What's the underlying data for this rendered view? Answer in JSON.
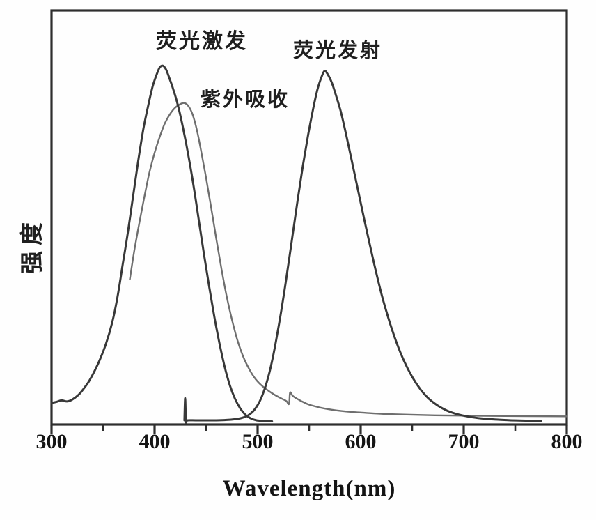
{
  "chart_data": {
    "type": "line",
    "title": "",
    "xlabel": "Wavelength(nm)",
    "ylabel": "强度",
    "xlim": [
      300,
      800
    ],
    "ylim": [
      0,
      1.155
    ],
    "x_ticks": [
      300,
      400,
      500,
      600,
      700,
      800
    ],
    "x_minor_ticks": [
      350,
      450,
      550,
      650,
      750
    ],
    "grid": false,
    "legend": "inline text annotations above each peak",
    "frame": "full box, no y-axis ticks",
    "frame_color": "#2e2e2e",
    "background_color": "#fefefe",
    "series": [
      {
        "name": "紫外吸收",
        "role": "uv-absorption",
        "color": "#6e6e6e",
        "stroke_width": 2.4,
        "peak_nm": 429,
        "points": [
          [
            376,
            0.4
          ],
          [
            380,
            0.475
          ],
          [
            385,
            0.555
          ],
          [
            390,
            0.63
          ],
          [
            395,
            0.7
          ],
          [
            400,
            0.755
          ],
          [
            405,
            0.8
          ],
          [
            410,
            0.838
          ],
          [
            415,
            0.864
          ],
          [
            420,
            0.882
          ],
          [
            425,
            0.892
          ],
          [
            429,
            0.895
          ],
          [
            433,
            0.886
          ],
          [
            437,
            0.862
          ],
          [
            441,
            0.82
          ],
          [
            445,
            0.763
          ],
          [
            450,
            0.685
          ],
          [
            455,
            0.6
          ],
          [
            460,
            0.512
          ],
          [
            465,
            0.428
          ],
          [
            470,
            0.352
          ],
          [
            475,
            0.288
          ],
          [
            480,
            0.233
          ],
          [
            486,
            0.183
          ],
          [
            492,
            0.147
          ],
          [
            498,
            0.12
          ],
          [
            505,
            0.099
          ],
          [
            512,
            0.084
          ],
          [
            518,
            0.073
          ],
          [
            524,
            0.064
          ],
          [
            528,
            0.058
          ],
          [
            530.5,
            0.05
          ],
          [
            531.5,
            0.082
          ],
          [
            534,
            0.073
          ],
          [
            538,
            0.065
          ],
          [
            543,
            0.057
          ],
          [
            549,
            0.049
          ],
          [
            556,
            0.043
          ],
          [
            565,
            0.037
          ],
          [
            576,
            0.032
          ],
          [
            589,
            0.028
          ],
          [
            604,
            0.025
          ],
          [
            622,
            0.022
          ],
          [
            645,
            0.02
          ],
          [
            672,
            0.018
          ],
          [
            703,
            0.017
          ],
          [
            740,
            0.016
          ],
          [
            800,
            0.015
          ]
        ]
      },
      {
        "name": "荧光激发",
        "role": "fluorescence-excitation",
        "color": "#383838",
        "stroke_width": 3,
        "peak_nm": 407,
        "points": [
          [
            300,
            0.053
          ],
          [
            305,
            0.056
          ],
          [
            310,
            0.06
          ],
          [
            315,
            0.057
          ],
          [
            320,
            0.062
          ],
          [
            326,
            0.075
          ],
          [
            331,
            0.092
          ],
          [
            336,
            0.112
          ],
          [
            341,
            0.138
          ],
          [
            347,
            0.175
          ],
          [
            353,
            0.22
          ],
          [
            359,
            0.28
          ],
          [
            364,
            0.35
          ],
          [
            369,
            0.44
          ],
          [
            374,
            0.53
          ],
          [
            379,
            0.63
          ],
          [
            384,
            0.73
          ],
          [
            389,
            0.82
          ],
          [
            394,
            0.89
          ],
          [
            398,
            0.94
          ],
          [
            402,
            0.975
          ],
          [
            405,
            0.995
          ],
          [
            408,
            1.0
          ],
          [
            411,
            0.99
          ],
          [
            414,
            0.968
          ],
          [
            418,
            0.935
          ],
          [
            423,
            0.885
          ],
          [
            428,
            0.82
          ],
          [
            433,
            0.745
          ],
          [
            438,
            0.66
          ],
          [
            443,
            0.565
          ],
          [
            448,
            0.47
          ],
          [
            453,
            0.38
          ],
          [
            458,
            0.295
          ],
          [
            463,
            0.22
          ],
          [
            468,
            0.155
          ],
          [
            473,
            0.103
          ],
          [
            478,
            0.065
          ],
          [
            483,
            0.038
          ],
          [
            488,
            0.02
          ],
          [
            493,
            0.01
          ],
          [
            499,
            0.004
          ],
          [
            506,
            0.002
          ],
          [
            514,
            0.001
          ]
        ]
      },
      {
        "name": "荧光发射",
        "role": "fluorescence-emission",
        "color": "#383838",
        "stroke_width": 3,
        "peak_nm": 565,
        "artifact_spike_nm": 430,
        "points": [
          [
            429,
            0.004
          ],
          [
            429.7,
            0.066
          ],
          [
            430.5,
            0.001
          ],
          [
            432,
            0.004
          ],
          [
            440,
            0.004
          ],
          [
            450,
            0.004
          ],
          [
            460,
            0.004
          ],
          [
            470,
            0.005
          ],
          [
            478,
            0.007
          ],
          [
            485,
            0.011
          ],
          [
            491,
            0.018
          ],
          [
            497,
            0.034
          ],
          [
            503,
            0.063
          ],
          [
            509,
            0.112
          ],
          [
            514,
            0.17
          ],
          [
            519,
            0.245
          ],
          [
            524,
            0.33
          ],
          [
            529,
            0.425
          ],
          [
            534,
            0.525
          ],
          [
            539,
            0.625
          ],
          [
            544,
            0.72
          ],
          [
            549,
            0.805
          ],
          [
            554,
            0.88
          ],
          [
            558,
            0.932
          ],
          [
            562,
            0.968
          ],
          [
            565,
            0.985
          ],
          [
            568,
            0.976
          ],
          [
            572,
            0.952
          ],
          [
            576,
            0.917
          ],
          [
            581,
            0.868
          ],
          [
            586,
            0.805
          ],
          [
            591,
            0.738
          ],
          [
            597,
            0.656
          ],
          [
            603,
            0.575
          ],
          [
            609,
            0.496
          ],
          [
            615,
            0.42
          ],
          [
            621,
            0.35
          ],
          [
            628,
            0.281
          ],
          [
            635,
            0.221
          ],
          [
            642,
            0.171
          ],
          [
            650,
            0.126
          ],
          [
            658,
            0.091
          ],
          [
            666,
            0.065
          ],
          [
            675,
            0.045
          ],
          [
            684,
            0.031
          ],
          [
            694,
            0.021
          ],
          [
            705,
            0.014
          ],
          [
            718,
            0.009
          ],
          [
            732,
            0.006
          ],
          [
            746,
            0.004
          ],
          [
            760,
            0.003
          ],
          [
            775,
            0.002
          ]
        ]
      }
    ]
  }
}
